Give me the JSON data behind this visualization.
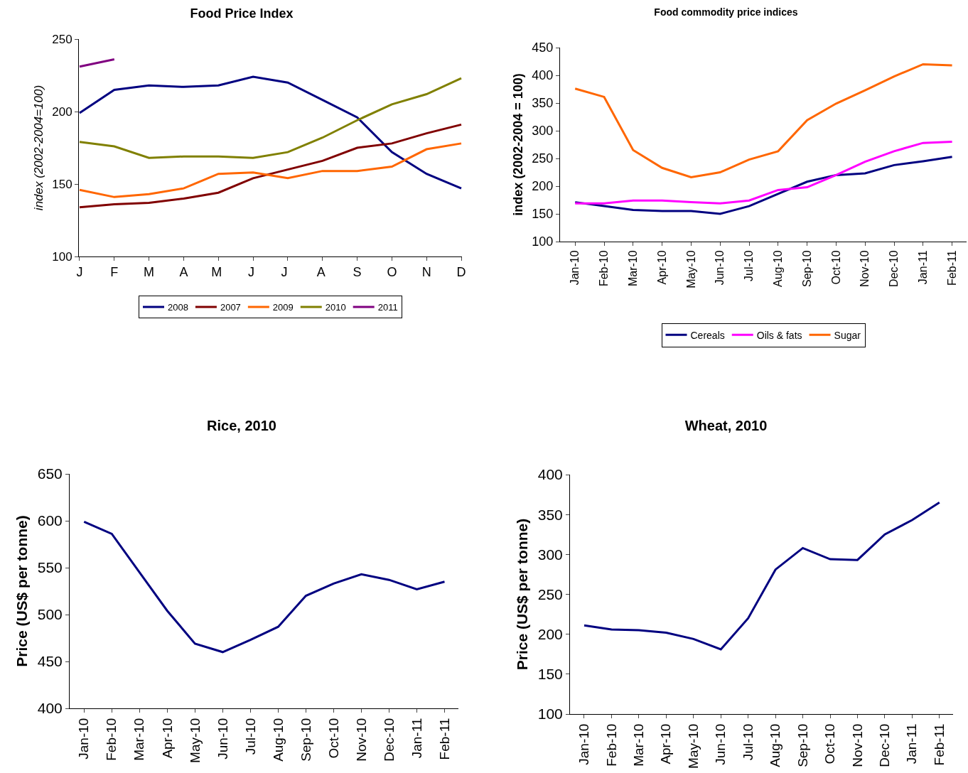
{
  "chart_data": [
    {
      "type": "line",
      "title": "Food Price Index",
      "ylabel": "index (2002-2004=100)",
      "categories": [
        "J",
        "F",
        "M",
        "A",
        "M ",
        "J ",
        "J  ",
        "A ",
        "S",
        "O",
        "N",
        "D"
      ],
      "ylim": [
        100,
        250
      ],
      "yticks": [
        100,
        150,
        200,
        250
      ],
      "legend": "bottom",
      "series": [
        {
          "name": "2008",
          "color": "#000080",
          "values": [
            199,
            215,
            218,
            217,
            218,
            224,
            220,
            208,
            196,
            172,
            157,
            147
          ]
        },
        {
          "name": "2007",
          "color": "#800000",
          "values": [
            134,
            136,
            137,
            140,
            144,
            154,
            160,
            166,
            175,
            178,
            185,
            191
          ]
        },
        {
          "name": "2009",
          "color": "#ff6600",
          "values": [
            146,
            141,
            143,
            147,
            157,
            158,
            154,
            159,
            159,
            162,
            174,
            178
          ]
        },
        {
          "name": "2010",
          "color": "#808000",
          "values": [
            179,
            176,
            168,
            169,
            169,
            168,
            172,
            182,
            194,
            205,
            212,
            223
          ]
        },
        {
          "name": "2011",
          "color": "#800080",
          "values": [
            231,
            236,
            null,
            null,
            null,
            null,
            null,
            null,
            null,
            null,
            null,
            null
          ]
        }
      ]
    },
    {
      "type": "line",
      "title": "Food commodity price indices",
      "ylabel": "index (2002-2004 = 100)",
      "categories": [
        "Jan-10",
        "Feb-10",
        "Mar-10",
        "Apr-10",
        "May-10",
        "Jun-10",
        "Jul-10",
        "Aug-10",
        "Sep-10",
        "Oct-10",
        "Nov-10",
        "Dec-10",
        "Jan-11",
        "Feb-11"
      ],
      "ylim": [
        100,
        450
      ],
      "yticks": [
        100,
        150,
        200,
        250,
        300,
        350,
        400,
        450
      ],
      "legend": "bottom",
      "series": [
        {
          "name": "Cereals",
          "color": "#000080",
          "values": [
            171,
            164,
            157,
            155,
            155,
            150,
            164,
            186,
            208,
            220,
            223,
            238,
            245,
            253
          ]
        },
        {
          "name": "Oils & fats",
          "color": "#ff00ff",
          "values": [
            169,
            169,
            174,
            174,
            171,
            169,
            174,
            193,
            198,
            220,
            244,
            263,
            278,
            280
          ]
        },
        {
          "name": "Sugar",
          "color": "#ff6600",
          "values": [
            376,
            361,
            265,
            233,
            216,
            225,
            248,
            263,
            319,
            349,
            373,
            398,
            420,
            418
          ]
        }
      ]
    },
    {
      "type": "line",
      "title": "Rice, 2010",
      "ylabel": "Price (US$ per tonne)",
      "categories": [
        "Jan-10",
        "Feb-10",
        "Mar-10",
        "Apr-10",
        "May-10",
        "Jun-10",
        "Jul-10",
        "Aug-10",
        "Sep-10",
        "Oct-10",
        "Nov-10",
        "Dec-10",
        "Jan-11",
        "Feb-11"
      ],
      "ylim": [
        400,
        650
      ],
      "yticks": [
        400,
        450,
        500,
        550,
        600,
        650
      ],
      "series": [
        {
          "color": "#000080",
          "values": [
            599,
            586,
            545,
            504,
            469,
            460,
            473,
            487,
            520,
            533,
            543,
            537,
            527,
            535
          ]
        }
      ]
    },
    {
      "type": "line",
      "title": "Wheat, 2010",
      "ylabel": "Price (US$ per tonne)",
      "categories": [
        "Jan-10",
        "Feb-10",
        "Mar-10",
        "Apr-10",
        "May-10",
        "Jun-10",
        "Jul-10",
        "Aug-10",
        "Sep-10",
        "Oct-10",
        "Nov-10",
        "Dec-10",
        "Jan-11",
        "Feb-11"
      ],
      "ylim": [
        100,
        400
      ],
      "yticks": [
        100,
        150,
        200,
        250,
        300,
        350,
        400
      ],
      "series": [
        {
          "color": "#000080",
          "values": [
            211,
            206,
            205,
            202,
            194,
            181,
            220,
            281,
            308,
            294,
            293,
            325,
            343,
            365
          ]
        }
      ]
    }
  ]
}
